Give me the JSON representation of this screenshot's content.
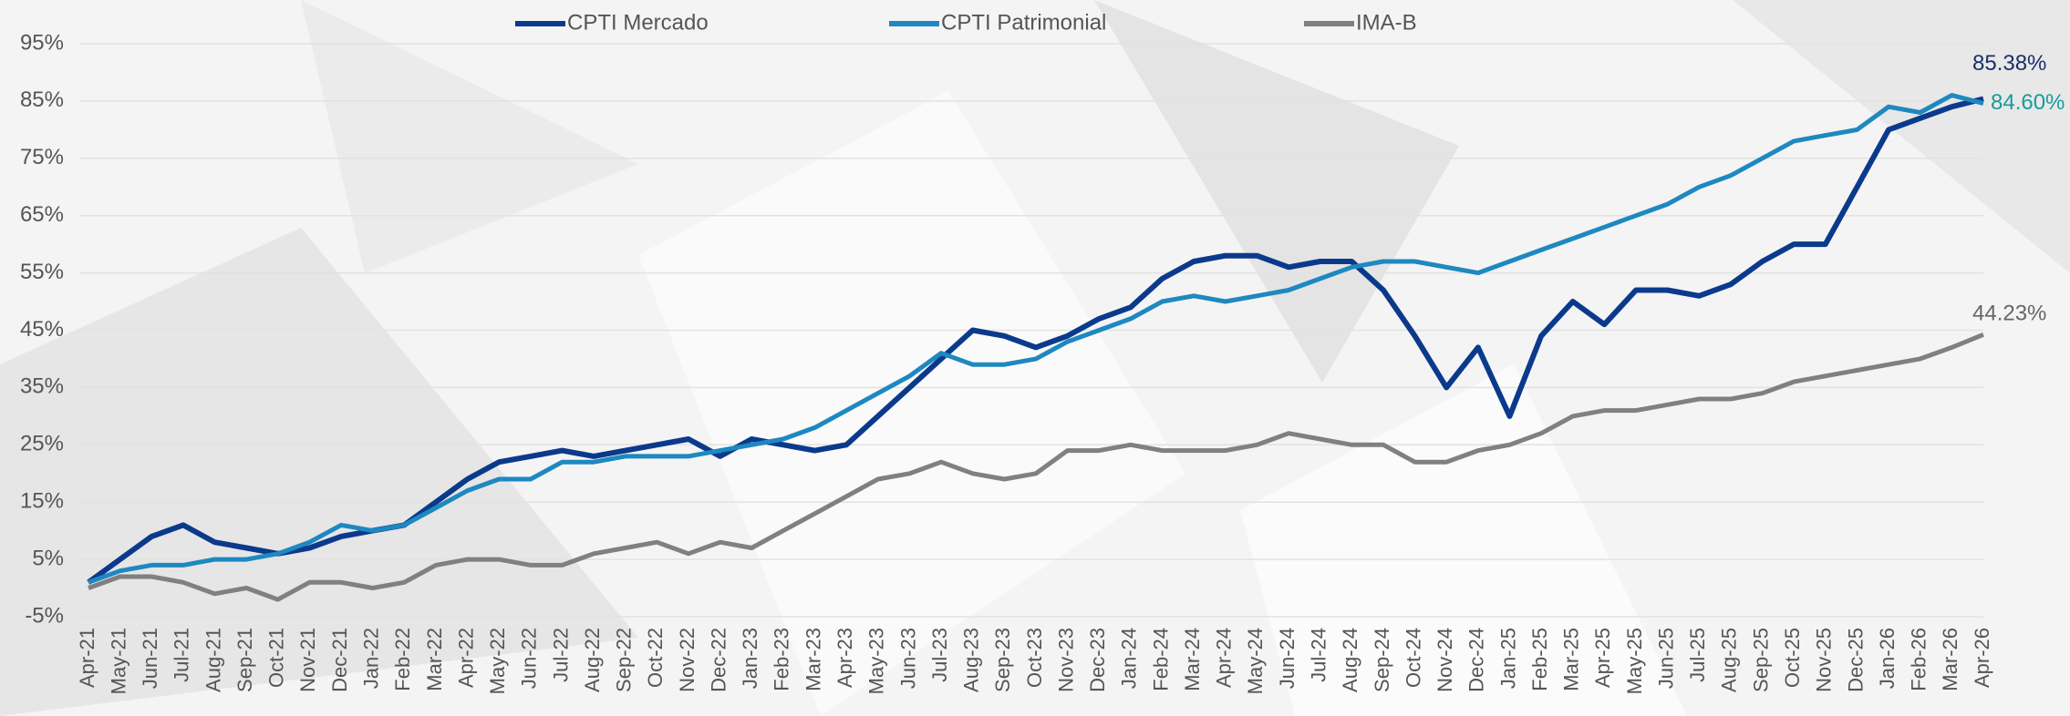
{
  "chart_data": {
    "type": "line",
    "categories": [
      "Apr-21",
      "May-21",
      "Jun-21",
      "Jul-21",
      "Aug-21",
      "Sep-21",
      "Oct-21",
      "Nov-21",
      "Dec-21",
      "Jan-22",
      "Feb-22",
      "Mar-22",
      "Apr-22",
      "May-22",
      "Jun-22",
      "Jul-22",
      "Aug-22",
      "Sep-22",
      "Oct-22",
      "Nov-22",
      "Dec-22",
      "Jan-23",
      "Feb-23",
      "Mar-23",
      "Apr-23",
      "May-23",
      "Jun-23",
      "Jul-23",
      "Aug-23",
      "Sep-23",
      "Oct-23",
      "Nov-23",
      "Dec-23",
      "Jan-24",
      "Feb-24",
      "Mar-24",
      "Apr-24",
      "May-24",
      "Jun-24",
      "Jul-24",
      "Aug-24",
      "Sep-24",
      "Oct-24",
      "Nov-24",
      "Dec-24",
      "Jan-25",
      "Feb-25",
      "Mar-25",
      "Apr-25",
      "May-25",
      "Jun-25",
      "Jul-25",
      "Aug-25",
      "Sep-25",
      "Oct-25",
      "Nov-25",
      "Dec-25",
      "Jan-26",
      "Feb-26",
      "Mar-26",
      "Apr-26"
    ],
    "series": [
      {
        "name": "CPTI Mercado",
        "color": "#0b3a8c",
        "values": [
          1,
          5,
          9,
          11,
          8,
          7,
          6,
          7,
          9,
          10,
          11,
          15,
          19,
          22,
          23,
          24,
          23,
          24,
          25,
          26,
          23,
          26,
          25,
          24,
          25,
          30,
          35,
          40,
          45,
          44,
          42,
          44,
          47,
          49,
          54,
          57,
          58,
          58,
          56,
          57,
          57,
          52,
          44,
          35,
          42,
          30,
          44,
          50,
          46,
          52,
          52,
          51,
          53,
          57,
          60,
          60,
          70,
          80,
          82,
          84,
          85.38
        ],
        "value_labels": [
          null,
          null,
          null,
          null,
          null,
          null,
          null,
          null,
          null,
          null,
          null,
          null,
          null,
          null,
          null,
          null,
          null,
          null,
          null,
          null,
          null,
          null,
          null,
          null,
          null,
          null,
          null,
          null,
          null,
          null,
          null,
          null,
          null,
          null,
          null,
          null,
          null,
          null,
          null,
          null,
          null,
          null,
          null,
          null,
          null,
          null,
          null,
          null,
          null,
          null,
          null,
          null,
          null,
          null,
          null,
          null,
          null,
          null,
          null,
          null,
          "85.38%"
        ]
      },
      {
        "name": "CPTI Patrimonial",
        "color": "#1e88c0",
        "values": [
          1,
          3,
          4,
          4,
          5,
          5,
          6,
          8,
          11,
          10,
          11,
          14,
          17,
          19,
          19,
          22,
          22,
          23,
          23,
          23,
          24,
          25,
          26,
          28,
          31,
          34,
          37,
          41,
          39,
          39,
          40,
          43,
          45,
          47,
          50,
          51,
          50,
          51,
          52,
          54,
          56,
          57,
          57,
          56,
          55,
          57,
          59,
          61,
          63,
          65,
          67,
          70,
          72,
          75,
          78,
          79,
          80,
          84,
          83,
          86,
          84.6
        ],
        "value_labels": [
          null,
          null,
          null,
          null,
          null,
          null,
          null,
          null,
          null,
          null,
          null,
          null,
          null,
          null,
          null,
          null,
          null,
          null,
          null,
          null,
          null,
          null,
          null,
          null,
          null,
          null,
          null,
          null,
          null,
          null,
          null,
          null,
          null,
          null,
          null,
          null,
          null,
          null,
          null,
          null,
          null,
          null,
          null,
          null,
          null,
          null,
          null,
          null,
          null,
          null,
          null,
          null,
          null,
          null,
          null,
          null,
          null,
          null,
          null,
          null,
          "84.60%"
        ]
      },
      {
        "name": "IMA-B",
        "color": "#808080",
        "values": [
          0,
          2,
          2,
          1,
          -1,
          0,
          -2,
          1,
          1,
          0,
          1,
          4,
          5,
          5,
          4,
          4,
          6,
          7,
          8,
          6,
          8,
          7,
          10,
          13,
          16,
          19,
          20,
          22,
          20,
          19,
          20,
          24,
          24,
          25,
          24,
          24,
          24,
          25,
          27,
          26,
          25,
          25,
          22,
          22,
          24,
          25,
          27,
          30,
          31,
          31,
          32,
          33,
          33,
          34,
          36,
          37,
          38,
          39,
          40,
          42,
          44.23
        ],
        "value_labels": [
          null,
          null,
          null,
          null,
          null,
          null,
          null,
          null,
          null,
          null,
          null,
          null,
          null,
          null,
          null,
          null,
          null,
          null,
          null,
          null,
          null,
          null,
          null,
          null,
          null,
          null,
          null,
          null,
          null,
          null,
          null,
          null,
          null,
          null,
          null,
          null,
          null,
          null,
          null,
          null,
          null,
          null,
          null,
          null,
          null,
          null,
          null,
          null,
          null,
          null,
          null,
          null,
          null,
          null,
          null,
          null,
          null,
          null,
          null,
          null,
          "44.23%"
        ]
      }
    ],
    "ylim": [
      -5,
      95
    ],
    "yticks": [
      {
        "value": -5,
        "label": "-5%"
      },
      {
        "value": 5,
        "label": "5%"
      },
      {
        "value": 15,
        "label": "15%"
      },
      {
        "value": 25,
        "label": "25%"
      },
      {
        "value": 35,
        "label": "35%"
      },
      {
        "value": 45,
        "label": "45%"
      },
      {
        "value": 55,
        "label": "55%"
      },
      {
        "value": 65,
        "label": "65%"
      },
      {
        "value": 75,
        "label": "75%"
      },
      {
        "value": 85,
        "label": "85%"
      },
      {
        "value": 95,
        "label": "95%"
      }
    ],
    "grid": true,
    "legend": "top"
  }
}
